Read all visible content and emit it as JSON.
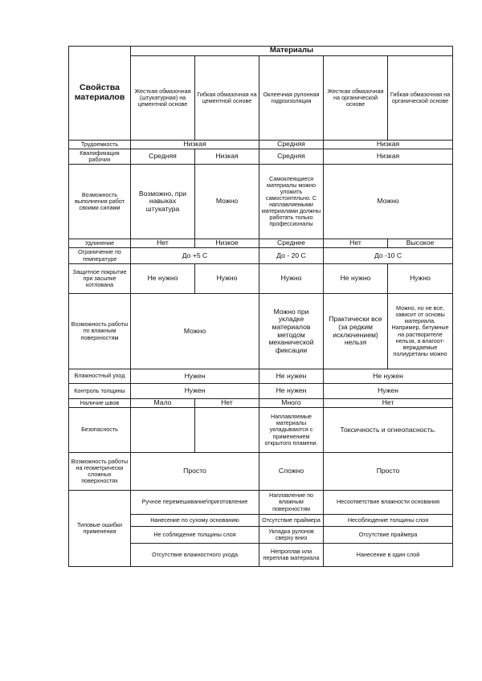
{
  "table": {
    "rows": [
      {
        "h": 12,
        "cells": [
          {
            "t": "Свойства материалов",
            "rs": 2,
            "c": "l"
          },
          {
            "t": "Материалы",
            "cs": 5,
            "c": "b"
          }
        ]
      },
      {
        "h": 105,
        "cells": [
          {
            "t": "Жесткая обмазочная (штукатурная) на цементной основе",
            "c": "s"
          },
          {
            "t": "Гибкая обмазочная на цементной основе",
            "c": "s"
          },
          {
            "t": "Оклеечная рулонная гидроизоляция",
            "c": "s"
          },
          {
            "t": "Жесткая обмазочная на органической основе",
            "c": "s"
          },
          {
            "t": "Гибкая обмазочная на органической основе",
            "c": "s"
          }
        ]
      },
      {
        "h": 11,
        "cells": [
          {
            "t": "Трудоемкость",
            "c": "s"
          },
          {
            "t": "Низкая",
            "cs": 2,
            "c": "m"
          },
          {
            "t": "Средняя",
            "c": "m"
          },
          {
            "t": "Низкая",
            "cs": 2,
            "c": "m"
          }
        ]
      },
      {
        "h": 19,
        "cells": [
          {
            "t": "Квалификация рабочих",
            "c": "s"
          },
          {
            "t": "Средняя",
            "c": "m"
          },
          {
            "t": "Низкая",
            "c": "m"
          },
          {
            "t": "Средняя",
            "c": "m"
          },
          {
            "t": "Низкая",
            "cs": 2,
            "c": "m"
          }
        ]
      },
      {
        "h": 93,
        "cells": [
          {
            "t": "Возможность выполнения работ своими силами",
            "c": "s"
          },
          {
            "t": "Возможно, при навыках штукатура",
            "c": "m"
          },
          {
            "t": "Можно",
            "c": "m"
          },
          {
            "t": "Самоклеящиеся материалы можно уложить самостоятельно. С наплавляемыми материалами должны работать только профессионалы",
            "c": "s"
          },
          {
            "t": "Можно",
            "cs": 2,
            "c": "m"
          }
        ]
      },
      {
        "h": 11,
        "cells": [
          {
            "t": "Удлинение",
            "c": "s"
          },
          {
            "t": "Нет",
            "c": "m"
          },
          {
            "t": "Низкое",
            "c": "m"
          },
          {
            "t": "Среднее",
            "c": "m"
          },
          {
            "t": "Нет",
            "c": "m"
          },
          {
            "t": "Высокое",
            "c": "m"
          }
        ]
      },
      {
        "h": 20,
        "cells": [
          {
            "t": "Ограничение по температуре",
            "c": "s"
          },
          {
            "t": "До +5 С",
            "cs": 2,
            "c": "m"
          },
          {
            "t": "До - 20 С",
            "c": "m"
          },
          {
            "t": "До -10 С",
            "cs": 2,
            "c": "m"
          }
        ]
      },
      {
        "h": 37,
        "cells": [
          {
            "t": "Защитное покрытие при засыпке котлована",
            "c": "s"
          },
          {
            "t": "Не нужно",
            "c": "m"
          },
          {
            "t": "Нужно",
            "c": "m"
          },
          {
            "t": "Нужно",
            "c": "m"
          },
          {
            "t": "Не нужно",
            "c": "m"
          },
          {
            "t": "Нужно",
            "c": "m"
          }
        ]
      },
      {
        "h": 94,
        "cells": [
          {
            "t": "Возможность работы по влажным поверхностям",
            "c": "s"
          },
          {
            "t": "Можно",
            "cs": 2,
            "c": "m"
          },
          {
            "t": "Можно при укладке материалов методом механической фиксации",
            "c": "m"
          },
          {
            "t": "Практически все (за редким исключением) нельзя",
            "c": "m"
          },
          {
            "t": "Можно, но не все, зависит от основы материала. Например, битумные на растворителе нельзя, а влагоот-верждаемые полиуретаны можно",
            "c": "s"
          }
        ]
      },
      {
        "h": 18,
        "cells": [
          {
            "t": "Влажностный уход",
            "c": "s"
          },
          {
            "t": "Нужен",
            "cs": 2,
            "c": "m"
          },
          {
            "t": "Не нужен",
            "c": "m"
          },
          {
            "t": "Не нужен",
            "cs": 2,
            "c": "m"
          }
        ]
      },
      {
        "h": 19,
        "cells": [
          {
            "t": "Контроль толщины",
            "c": "s"
          },
          {
            "t": "Нужен",
            "cs": 2,
            "c": "m"
          },
          {
            "t": "Не нужен",
            "c": "m"
          },
          {
            "t": "Нужен",
            "cs": 2,
            "c": "m"
          }
        ]
      },
      {
        "h": 11,
        "cells": [
          {
            "t": "Наличие швов",
            "c": "s"
          },
          {
            "t": "Мало",
            "c": "m"
          },
          {
            "t": "Нет",
            "c": "m"
          },
          {
            "t": "Много",
            "c": "m"
          },
          {
            "t": "Нет",
            "cs": 2,
            "c": "m"
          }
        ]
      },
      {
        "h": 56,
        "cells": [
          {
            "t": "Безопасность",
            "c": "s"
          },
          {
            "t": "",
            "c": "m"
          },
          {
            "t": "",
            "c": "m"
          },
          {
            "t": "Наплавляемые материалы укладываются с применением открытого пламени.",
            "c": "s"
          },
          {
            "t": "Токсичность и огнеопасность.",
            "cs": 2,
            "c": "m"
          }
        ]
      },
      {
        "h": 47,
        "cells": [
          {
            "t": "Возможность работы на геометрически сложных поверхностях",
            "c": "s"
          },
          {
            "t": "Просто",
            "cs": 2,
            "c": "m"
          },
          {
            "t": "Сложно",
            "c": "m"
          },
          {
            "t": "Просто",
            "cs": 2,
            "c": "m"
          }
        ]
      },
      {
        "h": 30,
        "cells": [
          {
            "t": "Типовые ошибки применения",
            "rs": 4,
            "c": "s"
          },
          {
            "t": "Ручное перемешивание\\приготовление",
            "cs": 2,
            "c": "s"
          },
          {
            "t": "Наплавление по влажным поверхностям",
            "c": "s"
          },
          {
            "t": "Несоответствие влажности основания",
            "cs": 2,
            "c": "s"
          }
        ]
      },
      {
        "h": 15,
        "cells": [
          {
            "t": "Нанесение по сухому основанию",
            "cs": 2,
            "c": "s"
          },
          {
            "t": "Отсутствие праймера",
            "c": "s"
          },
          {
            "t": "Несоблюдение толщины слоя",
            "cs": 2,
            "c": "s"
          }
        ]
      },
      {
        "h": 21,
        "cells": [
          {
            "t": "Не соблюдение толщины слоя",
            "cs": 2,
            "c": "s"
          },
          {
            "t": "Укладка рулонов сверху вниз",
            "c": "s"
          },
          {
            "t": "Отсутствие праймера",
            "cs": 2,
            "c": "s"
          }
        ]
      },
      {
        "h": 29,
        "cells": [
          {
            "t": "Отсутствие влажностного ухода",
            "cs": 2,
            "c": "s"
          },
          {
            "t": "Непроплав или переплав материала",
            "c": "s"
          },
          {
            "t": "Нанесение в один слой",
            "cs": 2,
            "c": "s"
          }
        ]
      }
    ]
  }
}
